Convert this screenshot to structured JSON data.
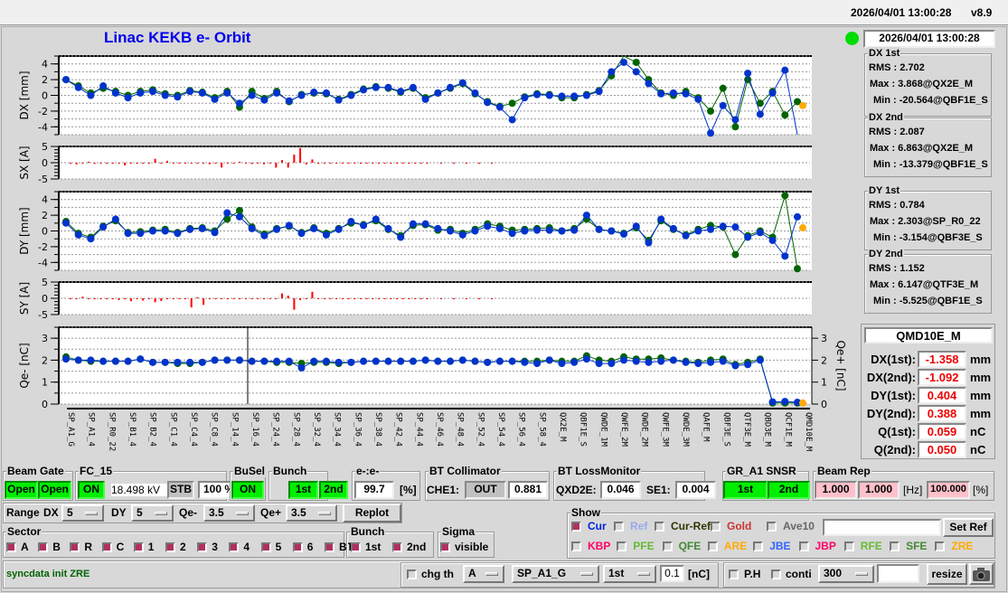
{
  "topbar": {
    "datetime": "2026/04/01 13:00:28",
    "version": "v8.9"
  },
  "title": "Linac KEKB e- Orbit",
  "status": {
    "led_color": "#00dd00",
    "datetime": "2026/04/01 13:00:28"
  },
  "stats": [
    {
      "title": "DX 1st",
      "rms": "RMS : 2.702",
      "max": "Max : 3.868@QX2E_M",
      "min": "Min : -20.564@QBF1E_S"
    },
    {
      "title": "DX 2nd",
      "rms": "RMS : 2.087",
      "max": "Max : 6.863@QX2E_M",
      "min": "Min : -13.379@QBF1E_S"
    },
    {
      "title": "DY 1st",
      "rms": "RMS : 0.784",
      "max": "Max : 2.303@SP_R0_22",
      "min": "Min : -3.154@QBF3E_S"
    },
    {
      "title": "DY 2nd",
      "rms": "RMS : 1.152",
      "max": "Max : 6.147@QTF3E_M",
      "min": "Min : -5.525@QBF1E_S"
    }
  ],
  "monitor": {
    "name": "QMD10E_M",
    "rows": [
      {
        "k": "DX(1st):",
        "v": "-1.358",
        "u": "mm"
      },
      {
        "k": "DX(2nd):",
        "v": "-1.092",
        "u": "mm"
      },
      {
        "k": "DY(1st):",
        "v": "0.404",
        "u": "mm"
      },
      {
        "k": "DY(2nd):",
        "v": "0.388",
        "u": "mm"
      },
      {
        "k": "Q(1st):",
        "v": "0.059",
        "u": "nC"
      },
      {
        "k": "Q(2nd):",
        "v": "0.050",
        "u": "nC"
      }
    ]
  },
  "chart_data": [
    {
      "type": "line",
      "ylabel": "DX [mm]",
      "ylim": [
        -5,
        5
      ],
      "yticks": [
        -4,
        -2,
        0,
        2,
        4
      ],
      "grid": true,
      "series": [
        {
          "color": "#006400",
          "values": [
            2.0,
            1.2,
            0.3,
            0.9,
            0.5,
            0.0,
            0.5,
            0.7,
            0.2,
            0.0,
            0.6,
            0.4,
            -0.3,
            0.5,
            -1.5,
            0.5,
            -0.4,
            0.5,
            -0.8,
            0.1,
            0.3,
            0.2,
            -0.5,
            0.1,
            0.8,
            1.1,
            0.9,
            0.4,
            0.9,
            -0.3,
            0.3,
            0.9,
            1.5,
            0.2,
            -0.8,
            -1.4,
            -1.0,
            -0.2,
            0.2,
            0.1,
            -0.3,
            -0.3,
            0.1,
            0.6,
            2.5,
            5.5,
            4.2,
            2.0,
            0.3,
            0.0,
            0.5,
            -0.3,
            -2.0,
            0.9,
            -4.0,
            2.0,
            -1.0,
            0.5,
            -2.5,
            -0.8
          ]
        },
        {
          "color": "#0033cc",
          "values": [
            2.0,
            1.0,
            0.0,
            1.2,
            0.3,
            -0.3,
            0.3,
            0.5,
            0.0,
            -0.2,
            0.5,
            0.3,
            -0.5,
            0.3,
            -1.0,
            0.0,
            -0.6,
            0.3,
            -0.7,
            0.0,
            0.4,
            0.3,
            -0.6,
            0.0,
            0.7,
            1.0,
            1.0,
            0.5,
            1.0,
            -0.5,
            0.3,
            1.0,
            1.6,
            0.3,
            -0.9,
            -1.5,
            -3.1,
            -0.3,
            0.1,
            0.0,
            -0.1,
            -0.1,
            0.0,
            0.5,
            3.0,
            4.2,
            3.0,
            1.5,
            0.2,
            0.3,
            0.2,
            -0.5,
            -4.8,
            -1.3,
            -3.1,
            2.8,
            -2.4,
            0.3,
            3.2,
            -6.0
          ]
        }
      ],
      "zre_point": -1.3
    },
    {
      "type": "bar",
      "ylabel": "SX [A]",
      "ylim": [
        -5,
        5
      ],
      "yticks": [
        -5,
        0,
        5
      ],
      "color": "#ff0000",
      "values": [
        0,
        -0.5,
        0,
        0.3,
        -0.3,
        0,
        0,
        -0.2,
        0,
        -0.8,
        0,
        -0.3,
        0,
        0,
        1.2,
        0,
        0.6,
        0,
        0,
        0,
        0,
        0,
        0,
        -0.5,
        0,
        -1.5,
        0,
        0,
        0.3,
        0,
        -0.4,
        0,
        -0.5,
        0,
        -1.5,
        0.8,
        -1.5,
        2.5,
        4.5,
        -0.5,
        1.0,
        -0.3,
        0,
        0,
        0,
        0,
        0,
        0,
        0,
        0,
        0,
        0,
        0,
        0,
        0,
        0,
        0,
        0,
        0,
        0
      ]
    },
    {
      "type": "line",
      "ylabel": "DY [mm]",
      "ylim": [
        -5,
        5
      ],
      "yticks": [
        -4,
        -2,
        0,
        2,
        4
      ],
      "grid": true,
      "series": [
        {
          "color": "#006400",
          "values": [
            1.2,
            -0.3,
            -0.8,
            0.6,
            1.3,
            -0.2,
            -0.1,
            0.1,
            0.2,
            -0.2,
            0.3,
            0.4,
            0.0,
            1.5,
            2.6,
            0.5,
            -0.4,
            0.3,
            0.6,
            -0.2,
            0.4,
            -0.3,
            0.3,
            1.0,
            0.8,
            1.3,
            0.2,
            -0.6,
            0.7,
            0.8,
            0.1,
            0.2,
            -0.3,
            0.2,
            0.9,
            0.6,
            0.1,
            0.2,
            0.3,
            0.4,
            0.0,
            0.3,
            1.5,
            0.2,
            0.0,
            -0.3,
            0.4,
            -1.2,
            1.3,
            0.2,
            -0.5,
            0.2,
            0.7,
            0.5,
            -3.0,
            -0.6,
            0.0,
            -0.8,
            4.5,
            -4.8
          ]
        },
        {
          "color": "#0033cc",
          "values": [
            1.0,
            -0.5,
            -1.0,
            0.5,
            1.5,
            -0.3,
            -0.3,
            0.0,
            0.0,
            -0.3,
            0.2,
            0.3,
            -0.2,
            2.3,
            1.8,
            0.3,
            -0.6,
            0.2,
            0.7,
            -0.3,
            0.3,
            -0.5,
            0.2,
            1.2,
            0.7,
            1.5,
            0.3,
            -0.8,
            0.9,
            0.9,
            0.3,
            0.0,
            -0.5,
            0.0,
            0.6,
            0.3,
            -0.3,
            0.0,
            0.1,
            0.1,
            0.0,
            0.1,
            2.0,
            0.2,
            0.0,
            -0.4,
            0.6,
            -1.5,
            1.5,
            0.3,
            -0.6,
            0.0,
            0.2,
            0.6,
            0.5,
            -0.8,
            -0.2,
            -1.2,
            -3.2,
            1.8
          ]
        }
      ],
      "zre_point": 0.4
    },
    {
      "type": "bar",
      "ylabel": "SY [A]",
      "ylim": [
        -5,
        5
      ],
      "yticks": [
        -5,
        0,
        5
      ],
      "color": "#ff0000",
      "values": [
        0,
        0,
        0.5,
        0,
        0,
        0,
        -0.3,
        0,
        -0.5,
        0,
        -0.9,
        0,
        -0.7,
        0,
        -1.2,
        -0.8,
        0,
        0,
        0,
        0,
        -2.8,
        0.3,
        -2.0,
        0,
        0,
        0,
        0,
        0,
        0,
        0,
        0,
        0,
        0,
        0,
        0,
        1.5,
        0.8,
        -3.5,
        -0.5,
        0,
        2.0,
        0,
        0,
        0,
        0,
        0,
        0,
        0,
        0,
        0,
        0,
        0,
        0,
        0,
        0,
        0,
        0,
        0,
        0,
        0
      ]
    },
    {
      "type": "line",
      "ylabel": "Qe- [nC]",
      "ylabel_right": "Qe+ [nC]",
      "ylim": [
        0,
        3.5
      ],
      "yticks": [
        0,
        1,
        2,
        3
      ],
      "grid": true,
      "series": [
        {
          "color": "#006400",
          "values": [
            2.15,
            2.0,
            1.95,
            1.95,
            1.95,
            1.95,
            2.05,
            1.9,
            1.9,
            1.85,
            1.85,
            1.9,
            2.0,
            2.0,
            2.0,
            1.95,
            1.95,
            1.9,
            1.9,
            1.85,
            1.9,
            1.9,
            1.85,
            1.9,
            1.95,
            1.95,
            1.95,
            1.95,
            1.95,
            2.0,
            1.95,
            1.95,
            2.0,
            1.95,
            1.9,
            1.95,
            1.95,
            1.95,
            1.95,
            2.0,
            1.95,
            1.95,
            2.2,
            2.0,
            1.95,
            2.15,
            2.05,
            2.05,
            2.1,
            2.0,
            1.95,
            1.9,
            2.0,
            2.05,
            1.8,
            1.9,
            2.05,
            0.05,
            0.05,
            0.05
          ]
        },
        {
          "color": "#0033cc",
          "values": [
            2.05,
            2.0,
            2.0,
            1.95,
            1.95,
            1.95,
            2.05,
            1.9,
            1.9,
            1.9,
            1.9,
            1.9,
            2.0,
            2.0,
            2.0,
            1.95,
            1.95,
            1.95,
            1.95,
            1.65,
            1.95,
            1.95,
            1.9,
            1.9,
            1.95,
            1.95,
            1.95,
            1.95,
            1.95,
            2.0,
            1.95,
            1.95,
            2.0,
            1.95,
            1.9,
            1.95,
            1.95,
            1.9,
            1.85,
            2.0,
            1.85,
            1.9,
            2.05,
            1.85,
            1.85,
            2.0,
            1.95,
            1.9,
            1.95,
            2.0,
            1.9,
            1.85,
            1.9,
            1.95,
            1.75,
            1.8,
            2.0,
            0.1,
            0.12,
            0.08
          ]
        }
      ],
      "zre_point": 0.05
    }
  ],
  "x_labels": [
    "SP_A1_G",
    "SP_A1_4",
    "SP_R0_22",
    "SP_B1_4",
    "SP_B2_4",
    "SP_C1_4",
    "SP_C4_4",
    "SP_C8_4",
    "SP_14_4",
    "SP_16_4",
    "SP_24_4",
    "SP_28_4",
    "SP_32_4",
    "SP_34_4",
    "SP_36_4",
    "SP_38_4",
    "SP_42_4",
    "SP_44_4",
    "SP_46_4",
    "SP_48_4",
    "SP_52_4",
    "SP_54_4",
    "SP_56_4",
    "SP_58_4",
    "QX2E_M",
    "QBF1E_S",
    "QWDE_1M",
    "QWFE_2M",
    "QWDE_2M",
    "QWFE_3M",
    "QWDE_3M",
    "QAFE_M",
    "QBF3E_S",
    "QTF3E_M",
    "QBD3E_M",
    "QCF1E_M",
    "QMD10E_M"
  ],
  "controls": {
    "beam_gate": {
      "label": "Beam Gate",
      "b1": "Open",
      "b2": "Open"
    },
    "fc15": {
      "label": "FC_15",
      "on": "ON",
      "kv": "18.498 kV",
      "stb": "STB",
      "pct": "100 %"
    },
    "busel": {
      "label": "BuSel",
      "on": "ON"
    },
    "bunch": {
      "label": "Bunch",
      "b1": "1st",
      "b2": "2nd"
    },
    "ee": {
      "label": "e-:e-",
      "value": "99.7",
      "unit": "[%]"
    },
    "bt_coll": {
      "label": "BT Collimator",
      "name": "CHE1:",
      "state": "OUT",
      "value": "0.881"
    },
    "bt_loss": {
      "label": "BT LossMonitor",
      "n1": "QXD2E:",
      "v1": "0.046",
      "n2": "SE1:",
      "v2": "0.004"
    },
    "snsr": {
      "label": "GR_A1 SNSR",
      "b1": "1st",
      "b2": "2nd"
    },
    "beam_rep": {
      "label": "Beam Rep",
      "v1": "1.000",
      "v2": "1.000",
      "hz": "[Hz]",
      "v3": "100.000",
      "pct": "[%]"
    },
    "range": {
      "label": "Range",
      "dx": "DX",
      "dx_v": "5",
      "dy": "DY",
      "dy_v": "5",
      "qm": "Qe-",
      "qm_v": "3.5",
      "qp": "Qe+",
      "qp_v": "3.5",
      "replot": "Replot"
    },
    "sector": {
      "label": "Sector",
      "items": [
        {
          "l": "A",
          "on": true
        },
        {
          "l": "B",
          "on": true
        },
        {
          "l": "R",
          "on": true
        },
        {
          "l": "C",
          "on": true
        },
        {
          "l": "1",
          "on": true
        },
        {
          "l": "2",
          "on": true
        },
        {
          "l": "3",
          "on": true
        },
        {
          "l": "4",
          "on": true
        },
        {
          "l": "5",
          "on": true
        },
        {
          "l": "6",
          "on": true
        },
        {
          "l": "BT",
          "on": true
        }
      ]
    },
    "bunch2": {
      "label": "Bunch",
      "b1": "1st",
      "b2": "2nd"
    },
    "sigma": {
      "label": "Sigma",
      "visible": "visible"
    },
    "show": {
      "label": "Show",
      "row1": [
        {
          "l": "Cur",
          "c": "#0022dd",
          "on": true
        },
        {
          "l": "Ref",
          "c": "#99aaee",
          "on": false
        },
        {
          "l": "Cur-Ref",
          "c": "#333300",
          "on": false
        },
        {
          "l": "Gold",
          "c": "#cc3333",
          "on": false
        },
        {
          "l": "Ave10",
          "c": "#666666",
          "on": false
        }
      ],
      "row2": [
        {
          "l": "KBP",
          "c": "#ff0066"
        },
        {
          "l": "PFE",
          "c": "#66bb33"
        },
        {
          "l": "QFE",
          "c": "#448833"
        },
        {
          "l": "ARE",
          "c": "#ffaa00"
        },
        {
          "l": "JBE",
          "c": "#3366ff"
        },
        {
          "l": "JBP",
          "c": "#ff0066"
        },
        {
          "l": "RFE",
          "c": "#66bb33"
        },
        {
          "l": "SFE",
          "c": "#448833"
        },
        {
          "l": "ZRE",
          "c": "#ffaa00"
        }
      ],
      "input": "",
      "set_ref": "Set Ref"
    },
    "message": "syncdata init ZRE",
    "chg": {
      "label": "chg th",
      "sel1": "A",
      "sel2": "SP_A1_G",
      "sel3": "1st",
      "value": "0.1",
      "unit": "[nC]"
    },
    "ph": {
      "label": "P.H",
      "conti": "conti",
      "sel": "300",
      "input": "",
      "resize": "resize"
    }
  }
}
